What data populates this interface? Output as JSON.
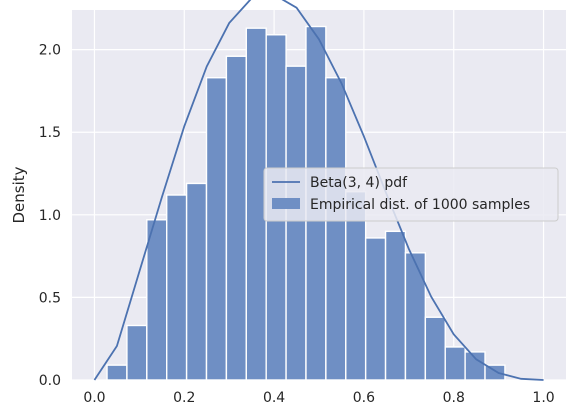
{
  "chart_data": {
    "type": "bar",
    "xlabel": "",
    "ylabel": "Density",
    "xlim": [
      -0.05,
      1.05
    ],
    "ylim": [
      0,
      2.24
    ],
    "xticks": [
      0.0,
      0.2,
      0.4,
      0.6,
      0.8,
      1.0
    ],
    "xtick_labels": [
      "0.0",
      "0.2",
      "0.4",
      "0.6",
      "0.8",
      "1.0"
    ],
    "yticks": [
      0.0,
      0.5,
      1.0,
      1.5,
      2.0
    ],
    "ytick_labels": [
      "0.0",
      "0.5",
      "1.0",
      "1.5",
      "2.0"
    ],
    "grid": true,
    "legend_position": "center-right",
    "colors": {
      "bar": "#6f8fc4",
      "line": "#4c72b0",
      "background": "#eaeaf2",
      "grid": "#ffffff"
    },
    "histogram": {
      "name": "Empirical dist. of 1000 samples",
      "bin_edges": [
        0.028,
        0.0723,
        0.1166,
        0.1609,
        0.2052,
        0.2495,
        0.2938,
        0.3381,
        0.3824,
        0.4267,
        0.471,
        0.5153,
        0.5596,
        0.6039,
        0.6482,
        0.6925,
        0.7368,
        0.7811,
        0.8254,
        0.8697,
        0.914
      ],
      "values": [
        0.09,
        0.33,
        0.97,
        1.12,
        1.19,
        1.83,
        1.96,
        2.13,
        2.09,
        1.9,
        2.14,
        1.83,
        1.14,
        0.86,
        0.9,
        0.77,
        0.38,
        0.2,
        0.17,
        0.09
      ]
    },
    "line": {
      "name": "Beta(3, 4) pdf",
      "x": [
        0.0,
        0.05,
        0.1,
        0.15,
        0.2,
        0.25,
        0.3,
        0.35,
        0.4,
        0.45,
        0.5,
        0.55,
        0.6,
        0.65,
        0.7,
        0.75,
        0.8,
        0.85,
        0.9,
        0.95,
        1.0
      ],
      "y": [
        0.0,
        0.2058,
        0.6561,
        1.1054,
        1.536,
        1.8984,
        2.1609,
        2.3112,
        2.3328,
        2.2541,
        2.0625,
        1.7968,
        1.4746,
        1.1279,
        0.7938,
        0.5032,
        0.2765,
        0.1252,
        0.0423,
        0.0072,
        0.0
      ]
    }
  }
}
